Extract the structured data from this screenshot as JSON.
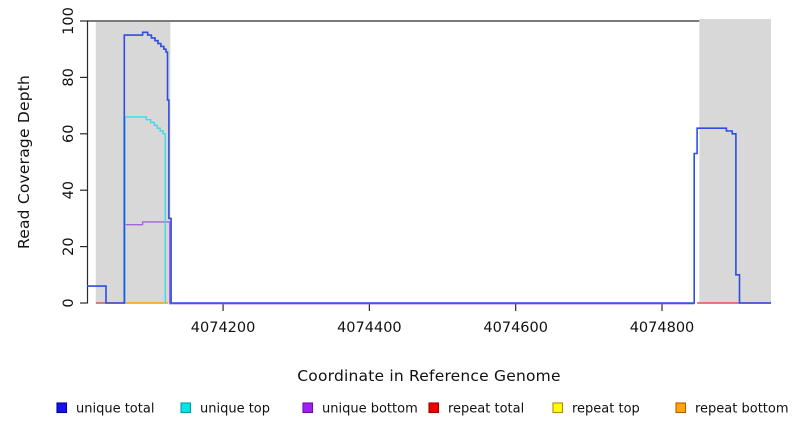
{
  "figure": {
    "x_axis_title": "Coordinate in Reference Genome",
    "y_axis_title": "Read Coverage Depth"
  },
  "chart_data": {
    "type": "line",
    "subtype": "step-coverage-plot",
    "title": "",
    "xlabel": "Coordinate in Reference Genome",
    "ylabel": "Read Coverage Depth",
    "xlim": [
      4074014,
      4074949
    ],
    "ylim": [
      0,
      100
    ],
    "x_ticks": [
      4074200,
      4074400,
      4074600,
      4074800
    ],
    "y_ticks": [
      0,
      20,
      40,
      60,
      80,
      100
    ],
    "grid": false,
    "background_color": "#ffffff",
    "highlight_regions": [
      {
        "name": "left",
        "x0": 4074026,
        "x1": 4074128,
        "color": "#d8d8d8"
      },
      {
        "name": "right",
        "x0": 4074851,
        "x1": 4074949,
        "color": "#d8d8d8"
      }
    ],
    "reference_line": {
      "y": 100,
      "x0": 4074014,
      "x1": 4074851,
      "color": "#7a7a7a",
      "width": 2
    },
    "series": [
      {
        "name": "repeat top",
        "color": "#f5ee30",
        "width": 1.4,
        "dy": 0,
        "segments": [
          [
            [
              4074067,
              0
            ],
            [
              4074125,
              0
            ]
          ]
        ]
      },
      {
        "name": "repeat bottom",
        "color": "#ff9d1c",
        "width": 1.6,
        "dy": 0,
        "segments": [
          [
            [
              4074067,
              0
            ],
            [
              4074125,
              0
            ]
          ]
        ]
      },
      {
        "name": "repeat total",
        "color": "#e04f55",
        "width": 1.4,
        "dy": 0,
        "segments": [
          [
            [
              4074026,
              0
            ],
            [
              4074067,
              0
            ]
          ],
          [
            [
              4074848,
              0
            ],
            [
              4074949,
              0
            ]
          ]
        ]
      },
      {
        "name": "unique bottom",
        "color": "#a265d6",
        "width": 1.4,
        "dy": 0.7,
        "segments": [
          [
            [
              4074065,
              0
            ],
            [
              4074065,
              28
            ],
            [
              4074090,
              28
            ],
            [
              4074090,
              29
            ],
            [
              4074127,
              29
            ],
            [
              4074127,
              0
            ],
            [
              4074844,
              0
            ]
          ]
        ]
      },
      {
        "name": "unique top",
        "color": "#3fd9e8",
        "width": 1.4,
        "dy": 0,
        "segments": [
          [
            [
              4074066,
              0
            ],
            [
              4074066,
              66
            ],
            [
              4074095,
              66
            ],
            [
              4074095,
              65
            ],
            [
              4074101,
              65
            ],
            [
              4074101,
              64
            ],
            [
              4074106,
              64
            ],
            [
              4074106,
              63
            ],
            [
              4074110,
              63
            ],
            [
              4074110,
              62
            ],
            [
              4074114,
              62
            ],
            [
              4074114,
              61
            ],
            [
              4074118,
              61
            ],
            [
              4074118,
              60
            ],
            [
              4074121,
              60
            ],
            [
              4074121,
              0
            ]
          ]
        ]
      },
      {
        "name": "unique total",
        "color": "#2f4de0",
        "width": 1.6,
        "dy": 0,
        "segments": [
          [
            [
              4074014,
              6
            ],
            [
              4074040,
              6
            ],
            [
              4074040,
              0
            ],
            [
              4074065,
              0
            ],
            [
              4074065,
              95
            ],
            [
              4074090,
              95
            ],
            [
              4074090,
              96
            ],
            [
              4074097,
              96
            ],
            [
              4074097,
              95
            ],
            [
              4074102,
              95
            ],
            [
              4074102,
              94
            ],
            [
              4074107,
              94
            ],
            [
              4074107,
              93
            ],
            [
              4074111,
              93
            ],
            [
              4074111,
              92
            ],
            [
              4074115,
              92
            ],
            [
              4074115,
              91
            ],
            [
              4074119,
              91
            ],
            [
              4074119,
              90
            ],
            [
              4074122,
              90
            ],
            [
              4074122,
              89
            ],
            [
              4074124,
              89
            ],
            [
              4074124,
              72
            ],
            [
              4074126,
              72
            ],
            [
              4074126,
              30
            ],
            [
              4074129,
              30
            ],
            [
              4074129,
              0
            ],
            [
              4074844,
              0
            ],
            [
              4074844,
              53
            ],
            [
              4074848,
              53
            ],
            [
              4074848,
              62
            ],
            [
              4074888,
              62
            ],
            [
              4074888,
              61
            ],
            [
              4074896,
              61
            ],
            [
              4074896,
              60
            ],
            [
              4074901,
              60
            ],
            [
              4074901,
              10
            ],
            [
              4074906,
              10
            ],
            [
              4074906,
              0
            ],
            [
              4074949,
              0
            ]
          ]
        ]
      }
    ]
  },
  "legend": {
    "items": [
      {
        "label": "unique total",
        "fill": "#1414e6",
        "border": "#0000a0"
      },
      {
        "label": "unique top",
        "fill": "#00e6e6",
        "border": "#00a0a0"
      },
      {
        "label": "unique bottom",
        "fill": "#a020f0",
        "border": "#6a0dad"
      },
      {
        "label": "repeat total",
        "fill": "#ee0000",
        "border": "#a00000"
      },
      {
        "label": "repeat top",
        "fill": "#ffff00",
        "border": "#b8860b"
      },
      {
        "label": "repeat bottom",
        "fill": "#ffa510",
        "border": "#b06000"
      }
    ]
  }
}
